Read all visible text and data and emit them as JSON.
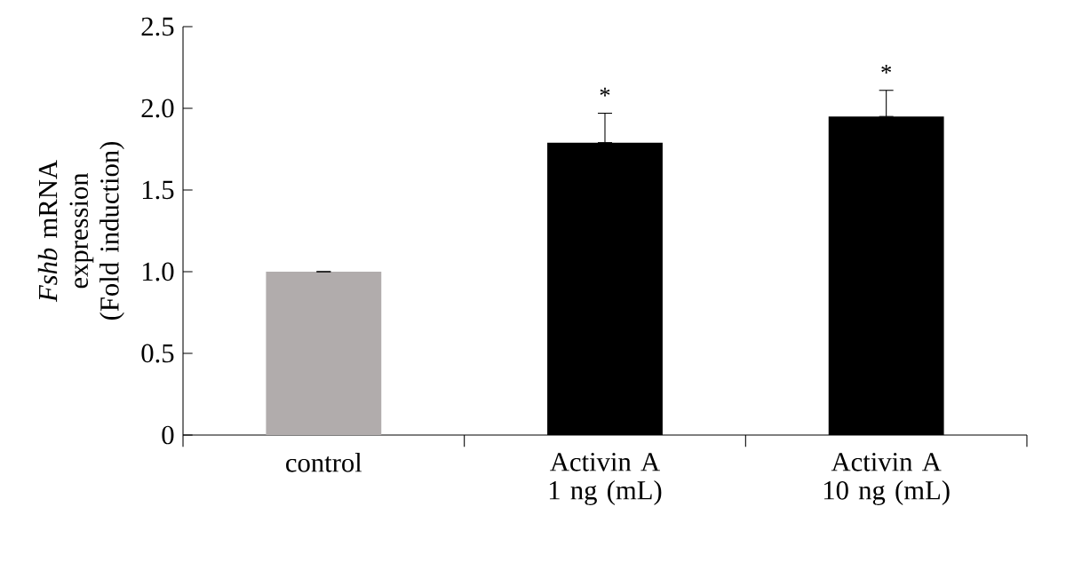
{
  "chart_data": {
    "type": "bar",
    "ylabel": "*Fshb* mRNA expression (Fold induction)",
    "categories": [
      "control",
      "Activin A 1 ng (mL)",
      "Activin A 10 ng (mL)"
    ],
    "values": [
      1.0,
      1.79,
      1.95
    ],
    "colors": [
      "#b1acac",
      "#000000",
      "#000000"
    ],
    "errors": [
      [
        1.0,
        1.0
      ],
      [
        1.79,
        1.97
      ],
      [
        1.95,
        2.11
      ]
    ],
    "ylim": [
      0,
      2.5
    ],
    "yticks": [
      0,
      0.5,
      {
        "value": 1,
        "label": "1.0"
      },
      1.5,
      {
        "value": 2,
        "label": "2.0"
      },
      2.5
    ],
    "annotations": [
      "*",
      "*"
    ],
    "grid": false
  }
}
